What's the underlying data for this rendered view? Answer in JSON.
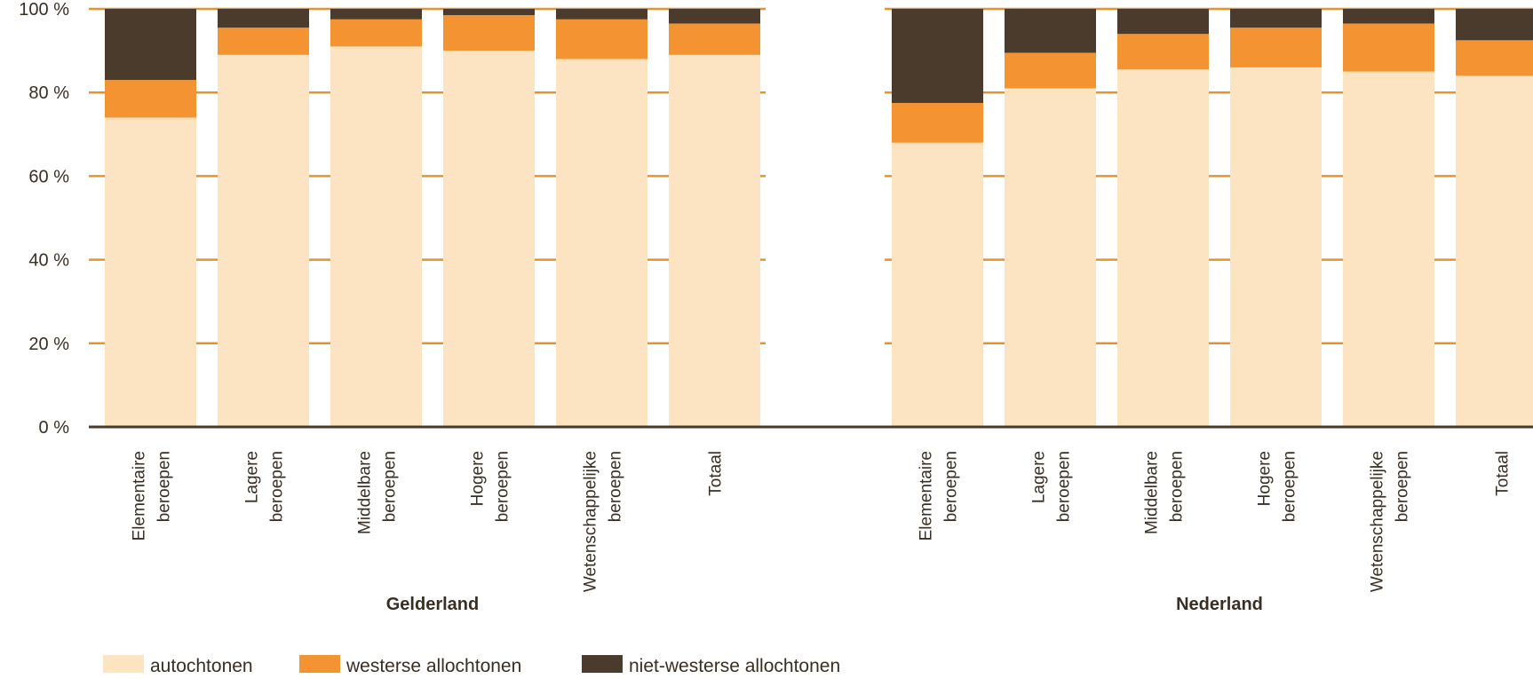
{
  "chart_data": {
    "type": "bar",
    "stacked": true,
    "title": "",
    "xlabel": "",
    "ylabel": "",
    "ylim": [
      0,
      100
    ],
    "y_ticks": [
      "0 %",
      "20 %",
      "40 %",
      "60 %",
      "80 %",
      "100 %"
    ],
    "grid": true,
    "legend_position": "bottom",
    "colors": {
      "autochtonen": "#fce3c2",
      "westerse allochtonen": "#f39331",
      "niet-westerse allochtonen": "#4a3b2c",
      "gridline": "#e8912f",
      "axis": "#4a3b2c"
    },
    "series_names": [
      "autochtonen",
      "westerse allochtonen",
      "niet-westerse allochtonen"
    ],
    "groups": [
      {
        "name": "Gelderland",
        "categories": [
          [
            "Elementaire",
            "beroepen"
          ],
          [
            "Lagere",
            "beroepen"
          ],
          [
            "Middelbare",
            "beroepen"
          ],
          [
            "Hogere",
            "beroepen"
          ],
          [
            "Wetenschappelijke",
            "beroepen"
          ],
          [
            "Totaal"
          ]
        ],
        "series": [
          {
            "name": "autochtonen",
            "values": [
              74,
              89,
              91,
              90,
              88,
              89
            ]
          },
          {
            "name": "westerse allochtonen",
            "values": [
              9,
              6.5,
              6.5,
              8.5,
              9.5,
              7.5
            ]
          },
          {
            "name": "niet-westerse allochtonen",
            "values": [
              17,
              4.5,
              2.5,
              1.5,
              2.5,
              3.5
            ]
          }
        ]
      },
      {
        "name": "Nederland",
        "categories": [
          [
            "Elementaire",
            "beroepen"
          ],
          [
            "Lagere",
            "beroepen"
          ],
          [
            "Middelbare",
            "beroepen"
          ],
          [
            "Hogere",
            "beroepen"
          ],
          [
            "Wetenschappelijke",
            "beroepen"
          ],
          [
            "Totaal"
          ]
        ],
        "series": [
          {
            "name": "autochtonen",
            "values": [
              68,
              81,
              85.5,
              86,
              85,
              84
            ]
          },
          {
            "name": "westerse allochtonen",
            "values": [
              9.5,
              8.5,
              8.5,
              9.5,
              11.5,
              8.5
            ]
          },
          {
            "name": "niet-westerse allochtonen",
            "values": [
              22.5,
              10.5,
              6,
              4.5,
              3.5,
              7.5
            ]
          }
        ]
      }
    ]
  }
}
